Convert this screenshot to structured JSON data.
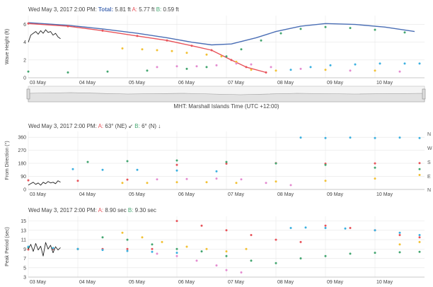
{
  "colors": {
    "total": "#4a6eb5",
    "a": "#e8535a",
    "b": "#43a670",
    "yellow": "#f2c134",
    "pink": "#e48bd0",
    "blue": "#3bb0e0",
    "obs": "#222222",
    "grid": "#e6e6e6",
    "axis": "#bbbbbb",
    "text": "#444444"
  },
  "panels": {
    "wave": {
      "header_prefix": "Wed May 3, 2017  2:00 PM: ",
      "header_total_label": "Total:",
      "header_total_value": " 5.81 ft ",
      "header_a_label": "A:",
      "header_a_value": " 5.77 ft ",
      "header_b_label": "B:",
      "header_b_value": " 0.59 ft"
    },
    "direction": {
      "header_prefix": "Wed May 3, 2017  2:00 PM: ",
      "header_a_label": "A:",
      "header_a_value": " 63° (NE) ↙ ",
      "header_b_label": "B:",
      "header_b_value": " 6° (N) ↓"
    },
    "period": {
      "header_prefix": "Wed May 3, 2017  2:00 PM: ",
      "header_a_label": "A:",
      "header_a_value": " 8.90 sec ",
      "header_b_label": "B:",
      "header_b_value": " 9.30 sec"
    }
  },
  "timezone_label": "MHT: Marshall Islands Time (UTC +12:00)",
  "compass_labels": [
    "N",
    "W",
    "S",
    "E",
    "N"
  ],
  "chart_data": [
    {
      "type": "line",
      "ylabel": "Wave Height (ft)",
      "ylim": [
        0,
        7
      ],
      "yticks": [
        0,
        2,
        4,
        6
      ],
      "xlim": [
        0,
        8
      ],
      "xticks": [
        "03 May",
        "04 May",
        "05 May",
        "06 May",
        "07 May",
        "08 May",
        "09 May",
        "10 May"
      ],
      "grid": true,
      "series": [
        {
          "key": "total",
          "style": "line",
          "x": [
            0,
            0.8,
            1.5,
            2.2,
            2.8,
            3.3,
            3.7,
            4.1,
            4.6,
            5.0,
            5.5,
            6.0,
            6.6,
            7.2,
            7.8
          ],
          "y": [
            6.2,
            5.9,
            5.5,
            5.0,
            4.5,
            4.0,
            3.7,
            3.8,
            4.5,
            5.2,
            5.8,
            6.1,
            6.0,
            5.7,
            5.2
          ]
        },
        {
          "key": "a",
          "style": "line",
          "x": [
            0,
            0.8,
            1.5,
            2.2,
            2.8,
            3.3,
            3.7,
            4.1,
            4.4,
            4.8
          ],
          "y": [
            6.1,
            5.8,
            5.3,
            4.7,
            4.2,
            3.6,
            3.1,
            2.0,
            1.2,
            0.6
          ]
        },
        {
          "key": "b",
          "style": "dots",
          "x": [
            0,
            0.8,
            1.6,
            2.4,
            3.2,
            3.6,
            4.0,
            4.3,
            4.7,
            5.1,
            5.5,
            6.0,
            6.5,
            7.0,
            7.6
          ],
          "y": [
            0.7,
            0.6,
            0.7,
            0.8,
            1.0,
            1.2,
            2.4,
            3.2,
            4.2,
            5.0,
            5.5,
            5.7,
            5.6,
            5.4,
            5.1
          ]
        },
        {
          "key": "yellow",
          "style": "dots",
          "x": [
            1.9,
            2.3,
            2.6,
            2.9,
            3.2,
            3.6,
            3.9,
            4.2,
            4.5,
            5.0,
            6.0,
            7.0
          ],
          "y": [
            3.3,
            3.2,
            3.1,
            3.0,
            2.8,
            2.6,
            2.4,
            1.8,
            0.9,
            0.8,
            0.9,
            0.8
          ]
        },
        {
          "key": "pink",
          "style": "dots",
          "x": [
            2.6,
            3.0,
            3.4,
            3.8,
            4.2,
            4.5,
            4.9,
            5.5,
            6.5,
            7.5
          ],
          "y": [
            1.2,
            1.3,
            1.3,
            1.4,
            1.6,
            1.5,
            1.2,
            1.0,
            0.8,
            0.7
          ]
        },
        {
          "key": "blue",
          "style": "dots",
          "x": [
            5.3,
            5.7,
            6.1,
            6.6,
            7.1,
            7.6,
            7.9
          ],
          "y": [
            0.9,
            1.2,
            1.4,
            1.5,
            1.6,
            1.6,
            1.6
          ]
        },
        {
          "key": "obs",
          "style": "line",
          "x": [
            0,
            0.05,
            0.1,
            0.15,
            0.2,
            0.25,
            0.3,
            0.35,
            0.4,
            0.45,
            0.5,
            0.55,
            0.6,
            0.65
          ],
          "y": [
            4.0,
            4.8,
            5.0,
            5.2,
            4.9,
            5.3,
            5.0,
            5.4,
            5.1,
            5.2,
            4.8,
            5.0,
            4.6,
            4.4
          ]
        }
      ]
    },
    {
      "type": "scatter",
      "ylabel": "From Direction (°)",
      "ylim": [
        0,
        400
      ],
      "yticks": [
        0,
        90,
        180,
        270,
        360
      ],
      "xlim": [
        0,
        8
      ],
      "xticks": [
        "03 May",
        "04 May",
        "05 May",
        "06 May",
        "07 May",
        "08 May",
        "09 May",
        "10 May"
      ],
      "grid": true,
      "series": [
        {
          "key": "a",
          "style": "dots",
          "x": [
            0,
            1,
            2,
            3,
            4,
            5,
            6,
            7,
            7.9
          ],
          "y": [
            63,
            60,
            68,
            170,
            178,
            182,
            178,
            180,
            182
          ]
        },
        {
          "key": "b",
          "style": "dots",
          "x": [
            1.2,
            2,
            3,
            4,
            5,
            6,
            7,
            7.9
          ],
          "y": [
            190,
            195,
            200,
            190,
            180,
            170,
            150,
            140
          ]
        },
        {
          "key": "blue",
          "style": "dots",
          "x": [
            0.9,
            1.5,
            2.2,
            3,
            3.8,
            5.5,
            6,
            6.5,
            7,
            7.5,
            7.9
          ],
          "y": [
            140,
            135,
            135,
            130,
            125,
            358,
            355,
            358,
            355,
            358,
            355
          ]
        },
        {
          "key": "yellow",
          "style": "dots",
          "x": [
            1.9,
            2.4,
            3,
            3.6,
            4.2,
            5,
            6,
            7,
            7.9
          ],
          "y": [
            45,
            45,
            50,
            50,
            45,
            55,
            60,
            75,
            100
          ]
        },
        {
          "key": "pink",
          "style": "dots",
          "x": [
            2.6,
            3.2,
            3.8,
            4.3,
            4.8,
            5.3
          ],
          "y": [
            70,
            72,
            75,
            70,
            45,
            30
          ]
        },
        {
          "key": "obs",
          "style": "line",
          "x": [
            0,
            0.05,
            0.1,
            0.15,
            0.2,
            0.25,
            0.3,
            0.35,
            0.4,
            0.45,
            0.5,
            0.55,
            0.6,
            0.65
          ],
          "y": [
            30,
            40,
            50,
            35,
            45,
            30,
            50,
            40,
            55,
            45,
            50,
            40,
            60,
            50
          ]
        }
      ]
    },
    {
      "type": "scatter",
      "ylabel": "Peak Period (sec)",
      "ylim": [
        3,
        16
      ],
      "yticks": [
        3,
        5,
        7,
        9,
        11,
        13,
        15
      ],
      "xlim": [
        0,
        8
      ],
      "xticks": [
        "03 May",
        "04 May",
        "05 May",
        "06 May",
        "07 May",
        "08 May",
        "09 May",
        "10 May"
      ],
      "grid": true,
      "series": [
        {
          "key": "a",
          "style": "dots",
          "x": [
            0,
            0.5,
            1,
            1.5,
            2,
            2.5,
            3.0,
            3.5,
            4,
            4.5,
            5,
            5.5,
            6,
            6.5,
            7,
            7.5,
            7.9
          ],
          "y": [
            8.9,
            9.0,
            9.0,
            9.0,
            9.0,
            9.0,
            15.0,
            14.0,
            13.0,
            12.0,
            11.0,
            10.5,
            14.0,
            13.5,
            13.0,
            12.0,
            11.5
          ]
        },
        {
          "key": "b",
          "style": "dots",
          "x": [
            0,
            0.5,
            1,
            1.5,
            2,
            2.5,
            3,
            3.5,
            4,
            4.5,
            5,
            5.5,
            6,
            6.5,
            7,
            7.5,
            7.9
          ],
          "y": [
            9.3,
            9.2,
            9.0,
            11.5,
            11.0,
            10.0,
            9.0,
            8.5,
            7.5,
            6.5,
            6.0,
            7.0,
            7.5,
            8.0,
            8.2,
            8.3,
            8.4
          ]
        },
        {
          "key": "blue",
          "style": "dots",
          "x": [
            0,
            0.5,
            1,
            1.5,
            2,
            2.5,
            3,
            5.3,
            5.6,
            6,
            6.4,
            7,
            7.5,
            7.9
          ],
          "y": [
            9.5,
            9.2,
            9.0,
            8.8,
            8.6,
            8.4,
            8.2,
            13.5,
            13.6,
            13.5,
            13.4,
            13.0,
            12.5,
            12.0
          ]
        },
        {
          "key": "yellow",
          "style": "dots",
          "x": [
            1.9,
            2.3,
            2.7,
            3.2,
            3.6,
            4.0,
            4.4,
            7.5,
            7.9
          ],
          "y": [
            12.5,
            11.5,
            10.5,
            9.5,
            9.0,
            8.5,
            9.0,
            10.0,
            10.5
          ]
        },
        {
          "key": "pink",
          "style": "dots",
          "x": [
            2.6,
            3.0,
            3.4,
            3.8,
            4.0,
            4.3
          ],
          "y": [
            8.0,
            7.5,
            6.5,
            5.5,
            4.5,
            4.0
          ]
        },
        {
          "key": "obs",
          "style": "line",
          "x": [
            0,
            0.05,
            0.1,
            0.15,
            0.2,
            0.25,
            0.3,
            0.35,
            0.4,
            0.45,
            0.5,
            0.55,
            0.6,
            0.65
          ],
          "y": [
            9.0,
            10.0,
            8.5,
            10.2,
            8.8,
            9.6,
            7.5,
            10.4,
            9.0,
            9.8,
            8.2,
            9.5,
            8.8,
            9.3
          ]
        }
      ]
    }
  ]
}
